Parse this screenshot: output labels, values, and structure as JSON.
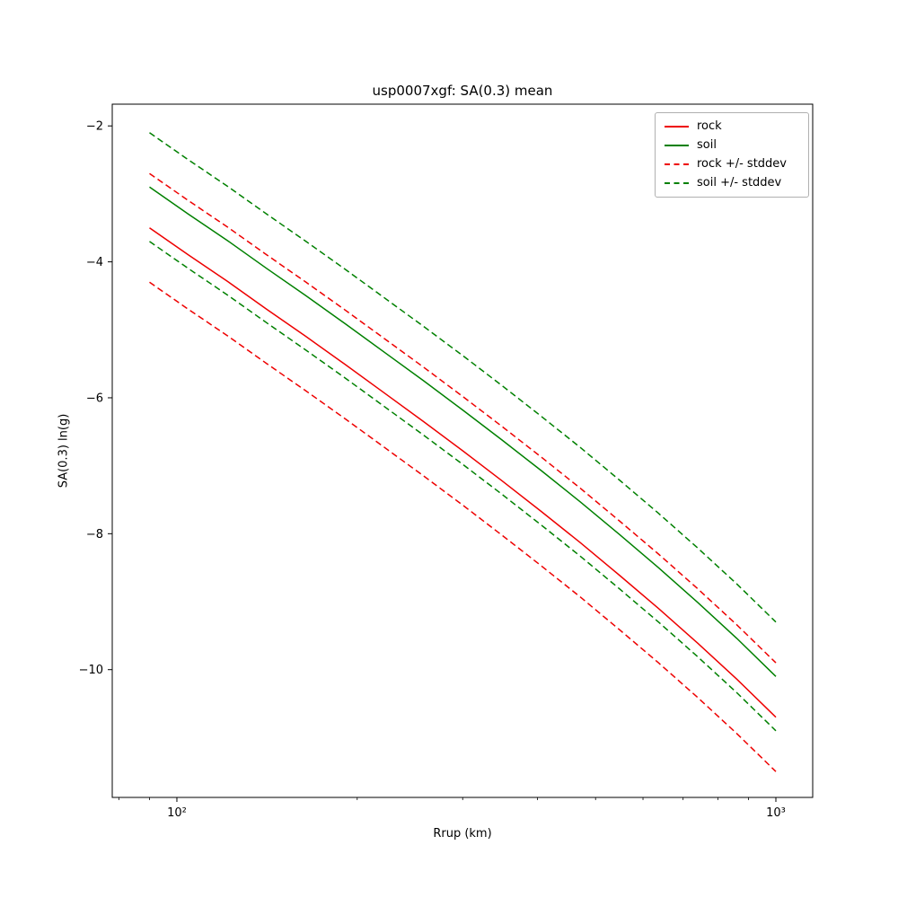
{
  "chart_data": {
    "type": "line",
    "title": "usp0007xgf: SA(0.3) mean",
    "xlabel": "Rrup (km)",
    "ylabel": "SA(0.3) ln(g)",
    "xscale": "log",
    "yscale": "linear",
    "grid": false,
    "xlim": [
      78,
      1152
    ],
    "ylim": [
      -11.88,
      -1.68
    ],
    "yticks": [
      -2,
      -4,
      -6,
      -8,
      -10
    ],
    "xticks": [
      {
        "value": 100,
        "label": "10²"
      },
      {
        "value": 1000,
        "label": "10³"
      }
    ],
    "xminorticks": [
      80,
      90,
      200,
      300,
      400,
      500,
      600,
      700,
      800,
      900
    ],
    "x": [
      90,
      104.6,
      121.6,
      141.4,
      164.3,
      191,
      222.1,
      258.1,
      300.1,
      348.8,
      405.5,
      471.3,
      547.9,
      636.9,
      740.3,
      860.6,
      1000
    ],
    "series": [
      {
        "name": "rock",
        "color": "#ee0000",
        "style": "solid",
        "values": [
          -3.5,
          -3.9,
          -4.29,
          -4.7,
          -5.1,
          -5.51,
          -5.93,
          -6.35,
          -6.78,
          -7.22,
          -7.67,
          -8.13,
          -8.61,
          -9.1,
          -9.61,
          -10.14,
          -10.7
        ]
      },
      {
        "name": "soil",
        "color": "#008000",
        "style": "solid",
        "values": [
          -2.9,
          -3.3,
          -3.69,
          -4.1,
          -4.5,
          -4.91,
          -5.33,
          -5.75,
          -6.18,
          -6.62,
          -7.07,
          -7.53,
          -8.01,
          -8.5,
          -9.01,
          -9.54,
          -10.1
        ]
      },
      {
        "name": "rock plus stddev",
        "color": "#ee0000",
        "style": "dashed",
        "values": [
          -2.7,
          -3.1,
          -3.49,
          -3.9,
          -4.3,
          -4.71,
          -5.13,
          -5.55,
          -5.98,
          -6.42,
          -6.87,
          -7.33,
          -7.81,
          -8.3,
          -8.81,
          -9.34,
          -9.9
        ]
      },
      {
        "name": "rock minus stddev",
        "color": "#ee0000",
        "style": "dashed",
        "values": [
          -4.3,
          -4.7,
          -5.09,
          -5.5,
          -5.9,
          -6.31,
          -6.73,
          -7.15,
          -7.58,
          -8.02,
          -8.47,
          -8.93,
          -9.41,
          -9.9,
          -10.41,
          -10.94,
          -11.5
        ]
      },
      {
        "name": "soil plus stddev",
        "color": "#008000",
        "style": "dashed",
        "values": [
          -2.1,
          -2.5,
          -2.89,
          -3.3,
          -3.7,
          -4.11,
          -4.53,
          -4.95,
          -5.38,
          -5.82,
          -6.27,
          -6.73,
          -7.21,
          -7.7,
          -8.21,
          -8.74,
          -9.3
        ]
      },
      {
        "name": "soil minus stddev",
        "color": "#008000",
        "style": "dashed",
        "values": [
          -3.7,
          -4.1,
          -4.49,
          -4.9,
          -5.3,
          -5.71,
          -6.13,
          -6.55,
          -6.98,
          -7.42,
          -7.87,
          -8.33,
          -8.81,
          -9.3,
          -9.81,
          -10.34,
          -10.9
        ]
      }
    ],
    "legend": {
      "position": "upper right",
      "entries": [
        {
          "label": "rock",
          "color": "#ee0000",
          "style": "solid"
        },
        {
          "label": "soil",
          "color": "#008000",
          "style": "solid"
        },
        {
          "label": "rock +/- stddev",
          "color": "#ee0000",
          "style": "dashed"
        },
        {
          "label": "soil +/- stddev",
          "color": "#008000",
          "style": "dashed"
        }
      ]
    }
  }
}
